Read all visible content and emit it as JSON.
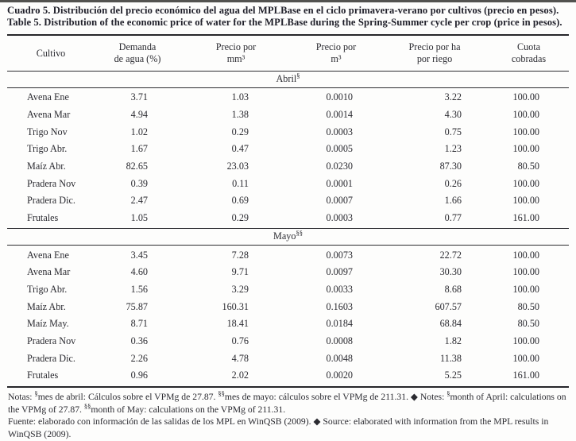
{
  "titles": {
    "es": "Cuadro 5. Distribución del precio económico del agua del MPLBase en el ciclo primavera-verano por cultivos (precio en pesos).",
    "en": "Table 5. Distribution of the economic price of water for the MPLBase during the Spring-Summer cycle per crop (price in pesos)."
  },
  "table": {
    "columns": [
      {
        "l1": "Cultivo",
        "l2": ""
      },
      {
        "l1": "Demanda",
        "l2": "de agua (%)"
      },
      {
        "l1": "Precio por",
        "l2": "mm³"
      },
      {
        "l1": "Precio por",
        "l2": "m³"
      },
      {
        "l1": "Precio por ha",
        "l2": "por riego"
      },
      {
        "l1": "Cuota",
        "l2": "cobradas"
      }
    ],
    "sections": [
      {
        "label": "Abril",
        "sup": "§",
        "rows": [
          {
            "crop": "Avena Ene",
            "demanda": "3.71",
            "mm3": "1.03",
            "m3": "0.0010",
            "ha": "3.22",
            "cuota": "100.00"
          },
          {
            "crop": "Avena Mar",
            "demanda": "4.94",
            "mm3": "1.38",
            "m3": "0.0014",
            "ha": "4.30",
            "cuota": "100.00"
          },
          {
            "crop": "Trigo Nov",
            "demanda": "1.02",
            "mm3": "0.29",
            "m3": "0.0003",
            "ha": "0.75",
            "cuota": "100.00"
          },
          {
            "crop": "Trigo Abr.",
            "demanda": "1.67",
            "mm3": "0.47",
            "m3": "0.0005",
            "ha": "1.23",
            "cuota": "100.00"
          },
          {
            "crop": "Maíz Abr.",
            "demanda": "82.65",
            "mm3": "23.03",
            "m3": "0.0230",
            "ha": "87.30",
            "cuota": "80.50"
          },
          {
            "crop": "Pradera Nov",
            "demanda": "0.39",
            "mm3": "0.11",
            "m3": "0.0001",
            "ha": "0.26",
            "cuota": "100.00"
          },
          {
            "crop": "Pradera Dic.",
            "demanda": "2.47",
            "mm3": "0.69",
            "m3": "0.0007",
            "ha": "1.66",
            "cuota": "100.00"
          },
          {
            "crop": "Frutales",
            "demanda": "1.05",
            "mm3": "0.29",
            "m3": "0.0003",
            "ha": "0.77",
            "cuota": "161.00"
          }
        ]
      },
      {
        "label": "Mayo",
        "sup": "§§",
        "rows": [
          {
            "crop": "Avena Ene",
            "demanda": "3.45",
            "mm3": "7.28",
            "m3": "0.0073",
            "ha": "22.72",
            "cuota": "100.00"
          },
          {
            "crop": "Avena Mar",
            "demanda": "4.60",
            "mm3": "9.71",
            "m3": "0.0097",
            "ha": "30.30",
            "cuota": "100.00"
          },
          {
            "crop": "Trigo Abr.",
            "demanda": "1.56",
            "mm3": "3.29",
            "m3": "0.0033",
            "ha": "8.68",
            "cuota": "100.00"
          },
          {
            "crop": "Maíz Abr.",
            "demanda": "75.87",
            "mm3": "160.31",
            "m3": "0.1603",
            "ha": "607.57",
            "cuota": "80.50"
          },
          {
            "crop": "Maíz May.",
            "demanda": "8.71",
            "mm3": "18.41",
            "m3": "0.0184",
            "ha": "68.84",
            "cuota": "80.50"
          },
          {
            "crop": "Pradera Nov",
            "demanda": "0.36",
            "mm3": "0.76",
            "m3": "0.0008",
            "ha": "1.82",
            "cuota": "100.00"
          },
          {
            "crop": "Pradera Dic.",
            "demanda": "2.26",
            "mm3": "4.78",
            "m3": "0.0048",
            "ha": "11.38",
            "cuota": "100.00"
          },
          {
            "crop": "Frutales",
            "demanda": "0.96",
            "mm3": "2.02",
            "m3": "0.0020",
            "ha": "5.25",
            "cuota": "161.00"
          }
        ]
      }
    ]
  },
  "notes": {
    "line1": "Notas: §mes de abril: Cálculos sobre el VPMg de 27.87. §§mes de mayo: cálculos sobre el VPMg de 211.31. ◆ Notes: §month of April: calculations on the VPMg of 27.87. §§month of May: calculations on the VPMg of 211.31.",
    "line2": "Fuente: elaborado con información de las salidas de los MPL en WinQSB (2009). ◆ Source: elaborated with information from the MPL results in WinQSB (2009)."
  }
}
